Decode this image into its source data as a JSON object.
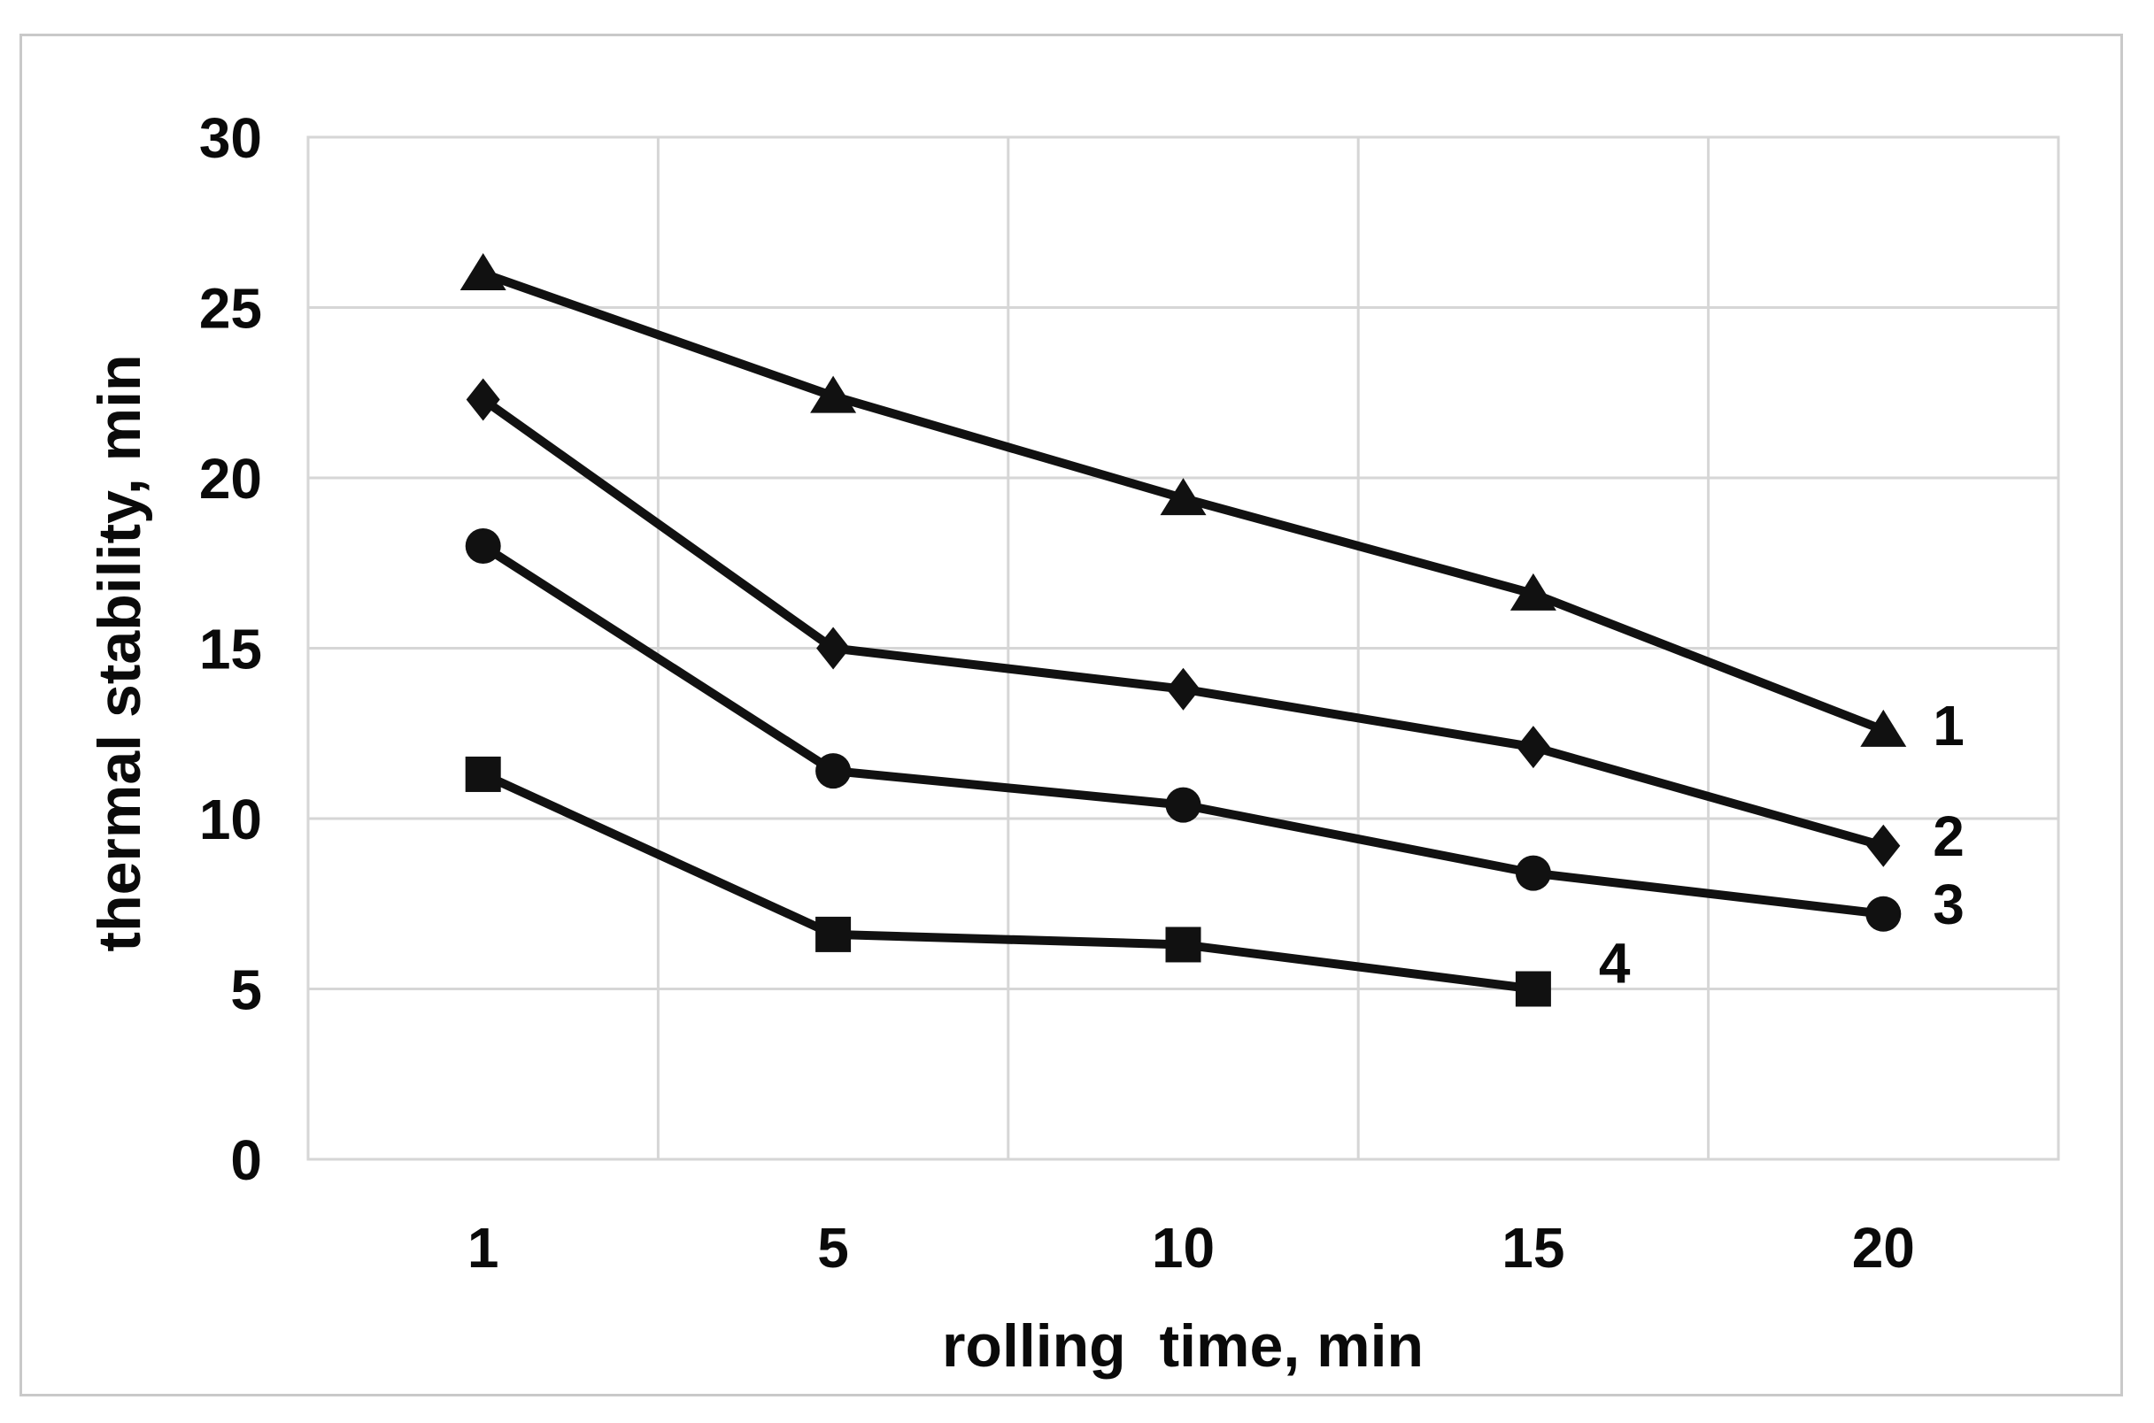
{
  "window": {
    "background": "#ffffff",
    "frame_border_color": "#c9c9c9"
  },
  "chart_data": {
    "type": "line",
    "title": "",
    "xlabel": "rolling  time, min",
    "ylabel": "thermal stability, min",
    "categories": [
      1,
      5,
      10,
      15,
      20
    ],
    "x_tick_labels": [
      "1",
      "5",
      "10",
      "15",
      "20"
    ],
    "ylim": [
      0,
      30
    ],
    "y_ticks": [
      0,
      5,
      10,
      15,
      20,
      25,
      30
    ],
    "y_tick_labels": [
      "0",
      "5",
      "10",
      "15",
      "20",
      "25",
      "30"
    ],
    "grid": "on",
    "gridline_color": "#d6d6d6",
    "plot_border_color": "#d6d6d6",
    "line_color": "#111111",
    "text_color": "#0a0a0a",
    "legend": "numeric labels at line ends",
    "series": [
      {
        "name": "1",
        "marker": "triangle",
        "values": [
          26.0,
          22.4,
          19.4,
          16.6,
          12.6
        ],
        "end_label": "1",
        "label_offset": [
          56,
          -6
        ]
      },
      {
        "name": "2",
        "marker": "diamond",
        "values": [
          22.3,
          15.0,
          13.8,
          12.1,
          9.2
        ],
        "end_label": "2",
        "label_offset": [
          56,
          -12
        ]
      },
      {
        "name": "3",
        "marker": "circle",
        "values": [
          18.0,
          11.4,
          10.4,
          8.4,
          7.2
        ],
        "end_label": "3",
        "label_offset": [
          56,
          -12
        ]
      },
      {
        "name": "4",
        "marker": "square",
        "values": [
          11.3,
          6.6,
          6.3,
          5.0
        ],
        "end_label": "4",
        "label_offset": [
          74,
          -30
        ]
      }
    ]
  }
}
